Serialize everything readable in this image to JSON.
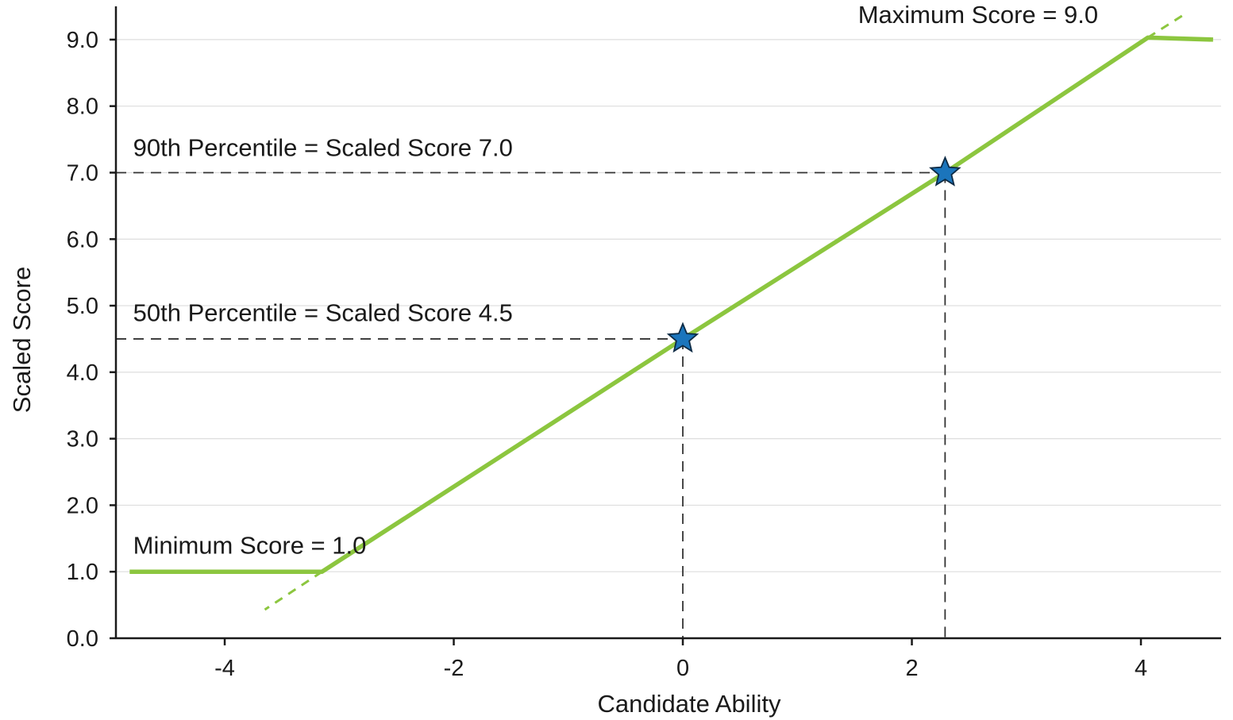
{
  "chart_data": {
    "type": "line",
    "title": "",
    "xlabel": "Candidate Ability",
    "ylabel": "Scaled Score",
    "xlim": [
      -4.95,
      4.7
    ],
    "ylim": [
      0,
      9.5
    ],
    "x_ticks": [
      -4,
      -2,
      0,
      2,
      4
    ],
    "x_tick_labels": [
      "-4",
      "-2",
      "0",
      "2",
      "4"
    ],
    "y_ticks": [
      0,
      1,
      2,
      3,
      4,
      5,
      6,
      7,
      8,
      9
    ],
    "y_tick_labels": [
      "0.0",
      "1.0",
      "2.0",
      "3.0",
      "4.0",
      "5.0",
      "6.0",
      "7.0",
      "8.0",
      "9.0"
    ],
    "grid": "horizontal",
    "colors": {
      "line": "#8cc63f",
      "star": "#1b75bc",
      "reference": "#333333",
      "grid": "#dddddd"
    },
    "series": [
      {
        "values": [
          {
            "x": -4.83,
            "y": 1.0
          },
          {
            "x": -3.15,
            "y": 1.0
          },
          {
            "x": 0.0,
            "y": 4.5
          },
          {
            "x": 2.29,
            "y": 7.0
          },
          {
            "x": 4.06,
            "y": 9.03
          },
          {
            "x": 4.63,
            "y": 9.0
          }
        ]
      }
    ],
    "extrapolation": [
      {
        "from": {
          "x": -3.15,
          "y": 1.0
        },
        "to": {
          "x": -3.65,
          "y": 0.43
        }
      },
      {
        "from": {
          "x": 4.06,
          "y": 9.03
        },
        "to": {
          "x": 4.38,
          "y": 9.38
        }
      }
    ],
    "markers": [
      {
        "x": 0.0,
        "y": 4.5,
        "shape": "star"
      },
      {
        "x": 2.29,
        "y": 7.0,
        "shape": "star"
      }
    ],
    "reference_lines": [
      {
        "y": 4.5,
        "x": 0.0
      },
      {
        "y": 7.0,
        "x": 2.29
      }
    ],
    "annotations": [
      {
        "text": "Maximum Score = 9.0",
        "x": 1.53,
        "y": 9.25
      },
      {
        "text": "90th Percentile = Scaled Score 7.0",
        "x": -4.8,
        "y": 7.25
      },
      {
        "text": "50th Percentile = Scaled Score 4.5",
        "x": -4.8,
        "y": 4.77
      },
      {
        "text": "Minimum Score = 1.0",
        "x": -4.8,
        "y": 1.27
      }
    ]
  }
}
